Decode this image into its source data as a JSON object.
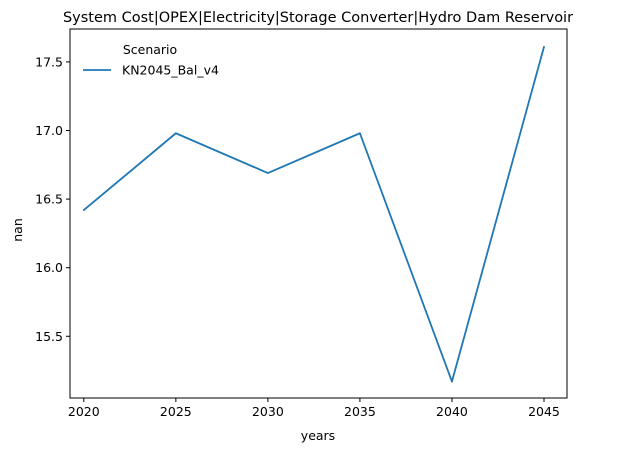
{
  "chart_data": {
    "type": "line",
    "title": "System Cost|OPEX|Electricity|Storage Converter|Hydro Dam Reservoir",
    "xlabel": "years",
    "ylabel": "nan",
    "x": [
      2020,
      2025,
      2030,
      2035,
      2040,
      2045
    ],
    "x_ticks": [
      "2020",
      "2025",
      "2030",
      "2035",
      "2040",
      "2045"
    ],
    "y_ticks": [
      "15.5",
      "16.0",
      "16.5",
      "17.0",
      "17.5"
    ],
    "y_tick_values": [
      15.5,
      16.0,
      16.5,
      17.0,
      17.5
    ],
    "xlim": [
      2019.25,
      2046.25
    ],
    "ylim": [
      15.05,
      17.74
    ],
    "legend": {
      "title": "Scenario",
      "placement": "top-left"
    },
    "series": [
      {
        "name": "KN2045_Bal_v4",
        "color": "#1f77b4",
        "values": [
          16.42,
          16.98,
          16.69,
          16.98,
          15.17,
          17.61
        ]
      }
    ],
    "grid": false
  }
}
